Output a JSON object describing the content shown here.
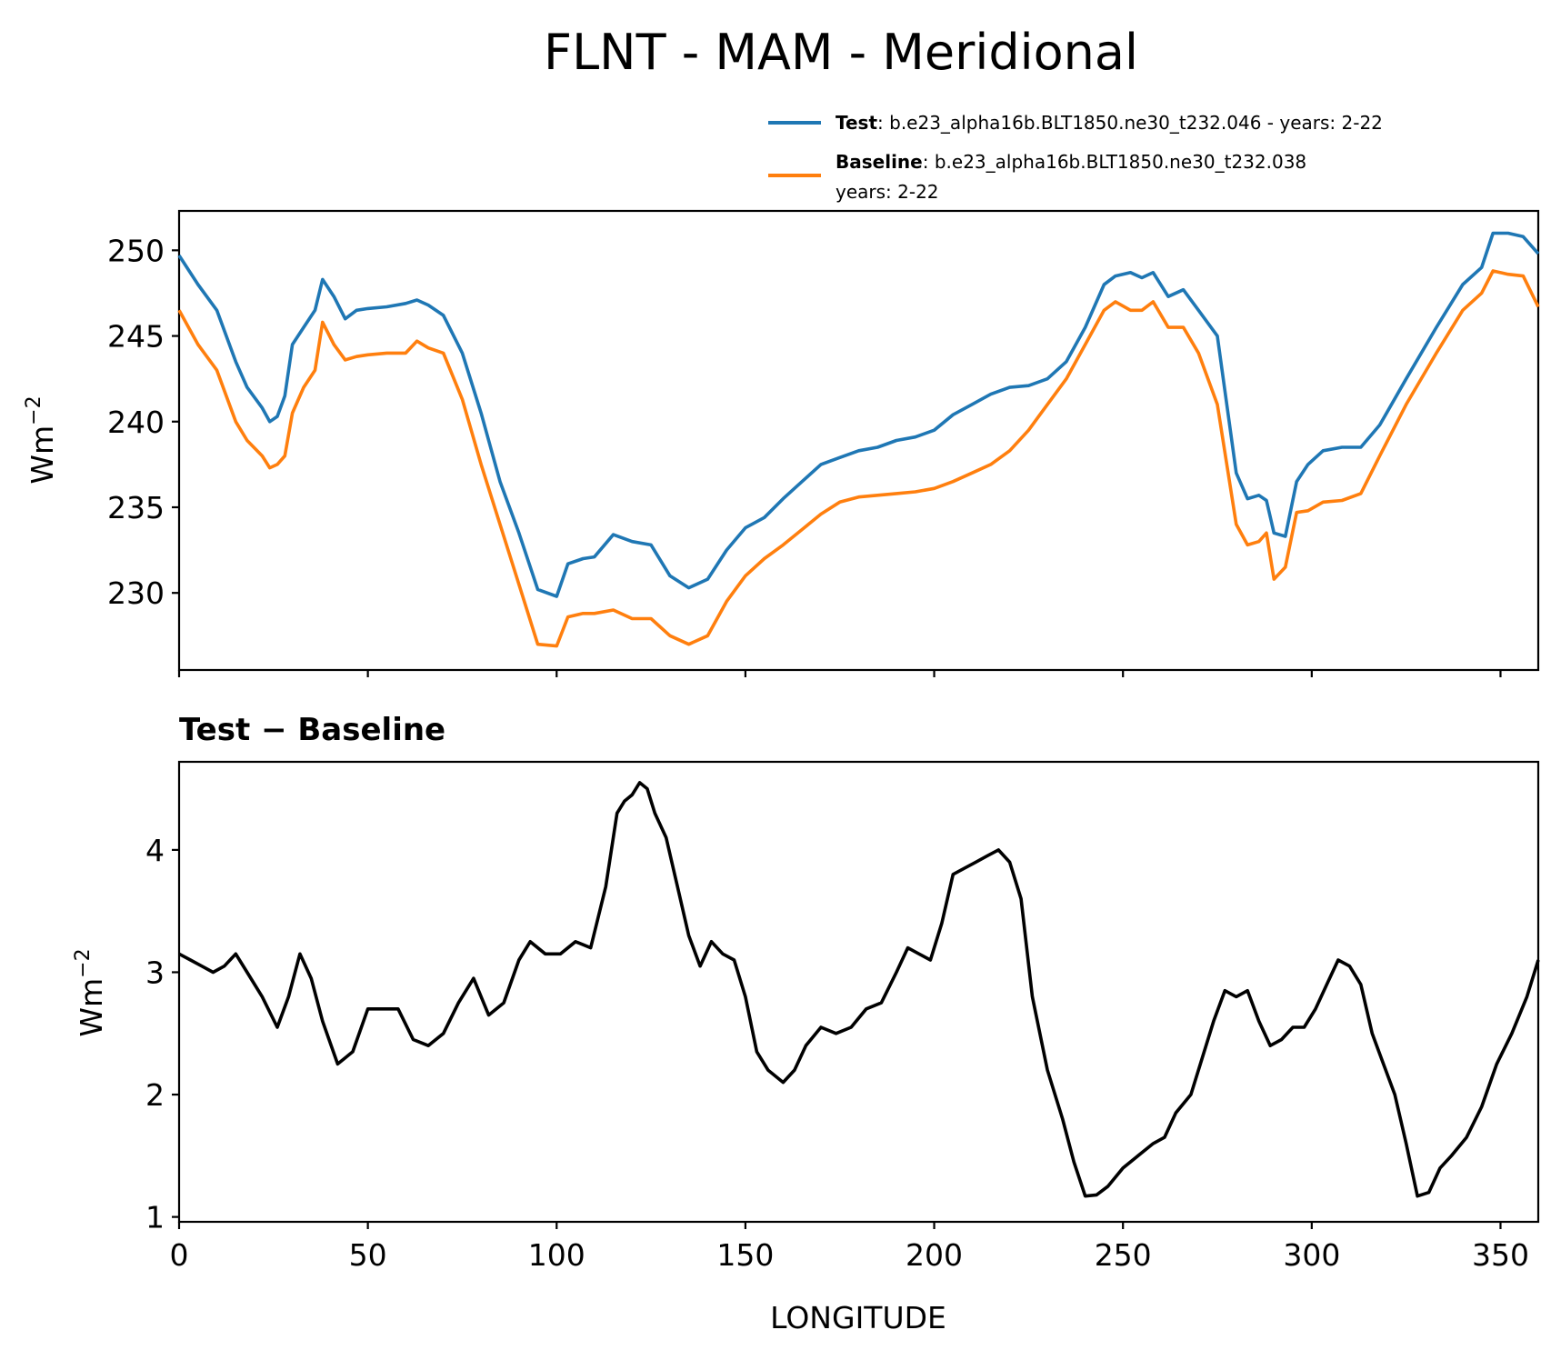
{
  "chart_data": [
    {
      "type": "line",
      "title": "FLNT - MAM - Meridional",
      "xlabel": "",
      "ylabel": "Wm",
      "ylabel_exponent": "−2",
      "xlim": [
        0,
        360
      ],
      "ylim": [
        225.5,
        252.3
      ],
      "xticks": [
        0,
        50,
        100,
        150,
        200,
        250,
        300,
        350
      ],
      "yticks": [
        230,
        235,
        240,
        245,
        250
      ],
      "ytick_labels": [
        "230",
        "235",
        "240",
        "245",
        "250"
      ],
      "legend": {
        "location": "top-right",
        "entries": [
          {
            "name": "Test",
            "sep": ": ",
            "text": "b.e23_alpha16b.BLT1850.ne30_t232.046 - years: 2-22",
            "text2": ""
          },
          {
            "name": "Baseline",
            "sep": ": ",
            "text": "b.e23_alpha16b.BLT1850.ne30_t232.038",
            "text2": "years: 2-22"
          }
        ]
      },
      "series": [
        {
          "name": "Test",
          "color": "#1f77b4",
          "x": [
            0,
            5,
            10,
            15,
            18,
            22,
            24,
            26,
            28,
            30,
            33,
            36,
            38,
            41,
            44,
            47,
            50,
            55,
            60,
            63,
            66,
            70,
            75,
            80,
            85,
            90,
            95,
            100,
            103,
            107,
            110,
            115,
            120,
            125,
            130,
            135,
            140,
            145,
            150,
            155,
            160,
            165,
            170,
            175,
            180,
            185,
            190,
            195,
            200,
            205,
            210,
            215,
            220,
            225,
            230,
            235,
            240,
            245,
            248,
            252,
            255,
            258,
            262,
            266,
            270,
            275,
            280,
            283,
            286,
            288,
            290,
            293,
            296,
            299,
            303,
            308,
            313,
            318,
            325,
            333,
            340,
            345,
            348,
            352,
            356,
            360
          ],
          "values": [
            249.7,
            248.0,
            246.5,
            243.5,
            242.0,
            240.8,
            240.0,
            240.3,
            241.5,
            244.5,
            245.5,
            246.5,
            248.3,
            247.3,
            246.0,
            246.5,
            246.6,
            246.7,
            246.9,
            247.1,
            246.8,
            246.2,
            244.0,
            240.5,
            236.5,
            233.5,
            230.2,
            229.8,
            231.7,
            232.0,
            232.1,
            233.4,
            233.0,
            232.8,
            231.0,
            230.3,
            230.8,
            232.5,
            233.8,
            234.4,
            235.5,
            236.5,
            237.5,
            237.9,
            238.3,
            238.5,
            238.9,
            239.1,
            239.5,
            240.4,
            241.0,
            241.6,
            242.0,
            242.1,
            242.5,
            243.5,
            245.5,
            248.0,
            248.5,
            248.7,
            248.4,
            248.7,
            247.3,
            247.7,
            246.5,
            245.0,
            237.0,
            235.5,
            235.7,
            235.4,
            233.5,
            233.3,
            236.5,
            237.5,
            238.3,
            238.5,
            238.5,
            239.8,
            242.5,
            245.5,
            248.0,
            249.0,
            251.0,
            251.0,
            250.8,
            249.8
          ]
        },
        {
          "name": "Baseline",
          "color": "#ff7f0e",
          "x": [
            0,
            5,
            10,
            15,
            18,
            22,
            24,
            26,
            28,
            30,
            33,
            36,
            38,
            41,
            44,
            47,
            50,
            55,
            60,
            63,
            66,
            70,
            75,
            80,
            85,
            90,
            95,
            100,
            103,
            107,
            110,
            115,
            120,
            125,
            130,
            135,
            140,
            145,
            150,
            155,
            160,
            165,
            170,
            175,
            180,
            185,
            190,
            195,
            200,
            205,
            210,
            215,
            220,
            225,
            230,
            235,
            240,
            245,
            248,
            252,
            255,
            258,
            262,
            266,
            270,
            275,
            280,
            283,
            286,
            288,
            290,
            293,
            296,
            299,
            303,
            308,
            313,
            318,
            325,
            333,
            340,
            345,
            348,
            352,
            356,
            360
          ],
          "values": [
            246.5,
            244.5,
            243.0,
            240.0,
            238.9,
            238.0,
            237.3,
            237.5,
            238.0,
            240.5,
            242.0,
            243.0,
            245.8,
            244.5,
            243.6,
            243.8,
            243.9,
            244.0,
            244.0,
            244.7,
            244.3,
            244.0,
            241.3,
            237.5,
            234.0,
            230.5,
            227.0,
            226.9,
            228.6,
            228.8,
            228.8,
            229.0,
            228.5,
            228.5,
            227.5,
            227.0,
            227.5,
            229.5,
            231.0,
            232.0,
            232.8,
            233.7,
            234.6,
            235.3,
            235.6,
            235.7,
            235.8,
            235.9,
            236.1,
            236.5,
            237.0,
            237.5,
            238.3,
            239.5,
            241.0,
            242.5,
            244.5,
            246.5,
            247.0,
            246.5,
            246.5,
            247.0,
            245.5,
            245.5,
            244.0,
            241.0,
            234.0,
            232.8,
            233.0,
            233.5,
            230.8,
            231.5,
            234.7,
            234.8,
            235.3,
            235.4,
            235.8,
            238.0,
            241.0,
            244.0,
            246.5,
            247.5,
            248.8,
            248.6,
            248.5,
            246.7
          ]
        }
      ]
    },
    {
      "type": "line",
      "title": "Test − Baseline",
      "xlabel": "LONGITUDE",
      "ylabel": "Wm",
      "ylabel_exponent": "−2",
      "xlim": [
        0,
        360
      ],
      "ylim": [
        0.96,
        4.72
      ],
      "xticks": [
        0,
        50,
        100,
        150,
        200,
        250,
        300,
        350
      ],
      "xtick_labels": [
        "0",
        "50",
        "100",
        "150",
        "200",
        "250",
        "300",
        "350"
      ],
      "yticks": [
        1,
        2,
        3,
        4
      ],
      "ytick_labels": [
        "1",
        "2",
        "3",
        "4"
      ],
      "series": [
        {
          "name": "Test - Baseline",
          "color": "#000000",
          "x": [
            0,
            3,
            6,
            9,
            12,
            15,
            18,
            22,
            26,
            29,
            32,
            35,
            38,
            42,
            46,
            50,
            54,
            58,
            62,
            66,
            70,
            74,
            78,
            82,
            86,
            90,
            93,
            97,
            101,
            105,
            109,
            113,
            116,
            118,
            120,
            122,
            124,
            126,
            129,
            132,
            135,
            138,
            141,
            144,
            147,
            150,
            153,
            156,
            160,
            163,
            166,
            170,
            174,
            178,
            182,
            186,
            190,
            193,
            196,
            199,
            202,
            205,
            208,
            211,
            214,
            217,
            220,
            223,
            226,
            230,
            234,
            237,
            240,
            243,
            246,
            250,
            254,
            258,
            261,
            264,
            268,
            271,
            274,
            277,
            280,
            283,
            286,
            289,
            292,
            295,
            298,
            301,
            304,
            307,
            310,
            313,
            316,
            319,
            322,
            325,
            328,
            331,
            334,
            337,
            341,
            345,
            349,
            353,
            357,
            360
          ],
          "values": [
            3.15,
            3.1,
            3.05,
            3.0,
            3.05,
            3.15,
            3.0,
            2.8,
            2.55,
            2.8,
            3.15,
            2.95,
            2.6,
            2.25,
            2.35,
            2.7,
            2.7,
            2.7,
            2.45,
            2.4,
            2.5,
            2.75,
            2.95,
            2.65,
            2.75,
            3.1,
            3.25,
            3.15,
            3.15,
            3.25,
            3.2,
            3.7,
            4.3,
            4.4,
            4.45,
            4.55,
            4.5,
            4.3,
            4.1,
            3.7,
            3.3,
            3.05,
            3.25,
            3.15,
            3.1,
            2.8,
            2.35,
            2.2,
            2.1,
            2.2,
            2.4,
            2.55,
            2.5,
            2.55,
            2.7,
            2.75,
            3.0,
            3.2,
            3.15,
            3.1,
            3.4,
            3.8,
            3.85,
            3.9,
            3.95,
            4.0,
            3.9,
            3.6,
            2.8,
            2.2,
            1.8,
            1.45,
            1.17,
            1.18,
            1.25,
            1.4,
            1.5,
            1.6,
            1.65,
            1.85,
            2.0,
            2.3,
            2.6,
            2.85,
            2.8,
            2.85,
            2.6,
            2.4,
            2.45,
            2.55,
            2.55,
            2.7,
            2.9,
            3.1,
            3.05,
            2.9,
            2.5,
            2.25,
            2.0,
            1.6,
            1.17,
            1.2,
            1.4,
            1.5,
            1.65,
            1.9,
            2.25,
            2.5,
            2.8,
            3.1
          ]
        }
      ]
    }
  ]
}
